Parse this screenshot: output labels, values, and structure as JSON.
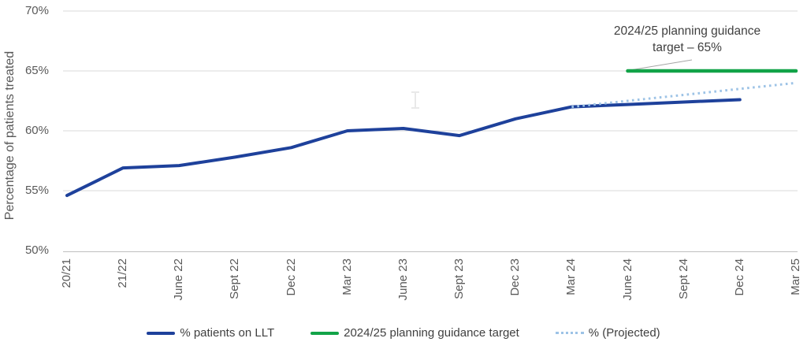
{
  "chart_data": {
    "type": "line",
    "title": "",
    "xlabel": "",
    "ylabel": "Percentage of patients treated",
    "ylim": [
      50,
      70
    ],
    "y_tick_step": 5,
    "y_ticks": [
      {
        "value": 70,
        "label": "70%"
      },
      {
        "value": 65,
        "label": "65%"
      },
      {
        "value": 60,
        "label": "60%"
      },
      {
        "value": 55,
        "label": "55%"
      },
      {
        "value": 50,
        "label": "50%"
      }
    ],
    "grid": "horizontal",
    "legend_position": "bottom",
    "categories": [
      "20/21",
      "21/22",
      "June 22",
      "Sept 22",
      "Dec 22",
      "Mar 23",
      "June 23",
      "Sept 23",
      "Dec 23",
      "Mar 24",
      "June 24",
      "Sept 24",
      "Dec 24",
      "Mar 25"
    ],
    "series": [
      {
        "name": "% patients on LLT",
        "slug": "patients-on-llt",
        "color": "#1e419b",
        "style": "solid",
        "width": 4,
        "start_index": 0,
        "values": [
          54.6,
          56.9,
          57.1,
          57.8,
          58.6,
          60.0,
          60.2,
          59.6,
          61.0,
          62.0,
          62.2,
          62.4,
          62.6
        ]
      },
      {
        "name": "2024/25 planning guidance target",
        "slug": "planning-guidance-target",
        "color": "#12a348",
        "style": "solid",
        "width": 4.5,
        "start_index": 10,
        "values": [
          65,
          65,
          65,
          65
        ]
      },
      {
        "name": "% (Projected)",
        "slug": "projected",
        "color": "#9dc3e6",
        "style": "dotted",
        "width": 3,
        "start_index": 9,
        "values": [
          62.0,
          62.5,
          63.0,
          63.5,
          64.0
        ]
      }
    ],
    "annotation": {
      "line1": "2024/25 planning guidance",
      "line2": "target – 65%"
    }
  },
  "colors": {
    "gridline": "#d9d9d9",
    "axis_line": "#bfbfbf",
    "tick_text": "#595959",
    "legend_text": "#404040",
    "leader_line": "#a6a6a6",
    "cursor_artifact": "#e9e9e9"
  }
}
